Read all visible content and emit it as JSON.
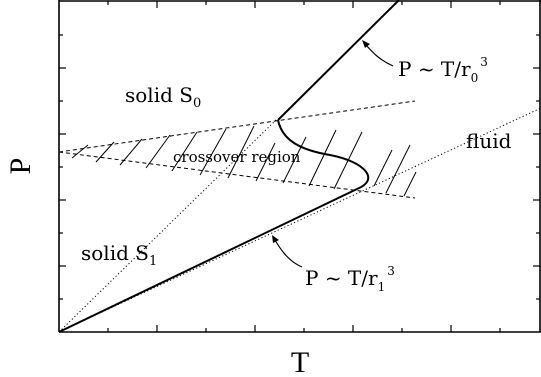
{
  "axes": {
    "x_label": "T",
    "y_label": "P"
  },
  "regions": {
    "solid_s0": {
      "prefix": "solid S",
      "sub": "0"
    },
    "solid_s1": {
      "prefix": "solid S",
      "sub": "1"
    },
    "fluid": "fluid",
    "crossover": "crossover region"
  },
  "annotations": {
    "upper_formula": {
      "main": "P ~ T/r",
      "sub": "0",
      "sup": "3"
    },
    "lower_formula": {
      "main": "P ~ T/r",
      "sub": "1",
      "sup": "3"
    }
  },
  "colors": {
    "ink": "#000000",
    "background": "#ffffff"
  }
}
